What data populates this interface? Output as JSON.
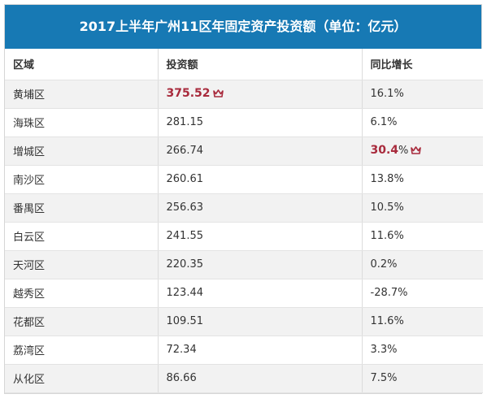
{
  "title": "2017上半年广州11区年固定资产投资额（单位：亿元）",
  "headers": {
    "district": "区域",
    "investment": "投资额",
    "growth": "同比增长"
  },
  "colors": {
    "header_bg": "#1779b4",
    "highlight": "#a82a3c"
  },
  "highlight_icon": "crown-icon",
  "rows": [
    {
      "district": "黄埔区",
      "investment": "375.52",
      "growth": "16.1%",
      "top_investment": true
    },
    {
      "district": "海珠区",
      "investment": "281.15",
      "growth": "6.1%"
    },
    {
      "district": "增城区",
      "investment": "266.74",
      "growth_value": "30.4",
      "growth_unit": "%",
      "top_growth": true
    },
    {
      "district": "南沙区",
      "investment": "260.61",
      "growth": "13.8%"
    },
    {
      "district": "番禺区",
      "investment": "256.63",
      "growth": "10.5%"
    },
    {
      "district": "白云区",
      "investment": "241.55",
      "growth": "11.6%"
    },
    {
      "district": "天河区",
      "investment": "220.35",
      "growth": "0.2%"
    },
    {
      "district": "越秀区",
      "investment": "123.44",
      "growth": "-28.7%"
    },
    {
      "district": "花都区",
      "investment": "109.51",
      "growth": "11.6%"
    },
    {
      "district": "荔湾区",
      "investment": "72.34",
      "growth": "3.3%"
    },
    {
      "district": "从化区",
      "investment": "86.66",
      "growth": "7.5%"
    }
  ]
}
